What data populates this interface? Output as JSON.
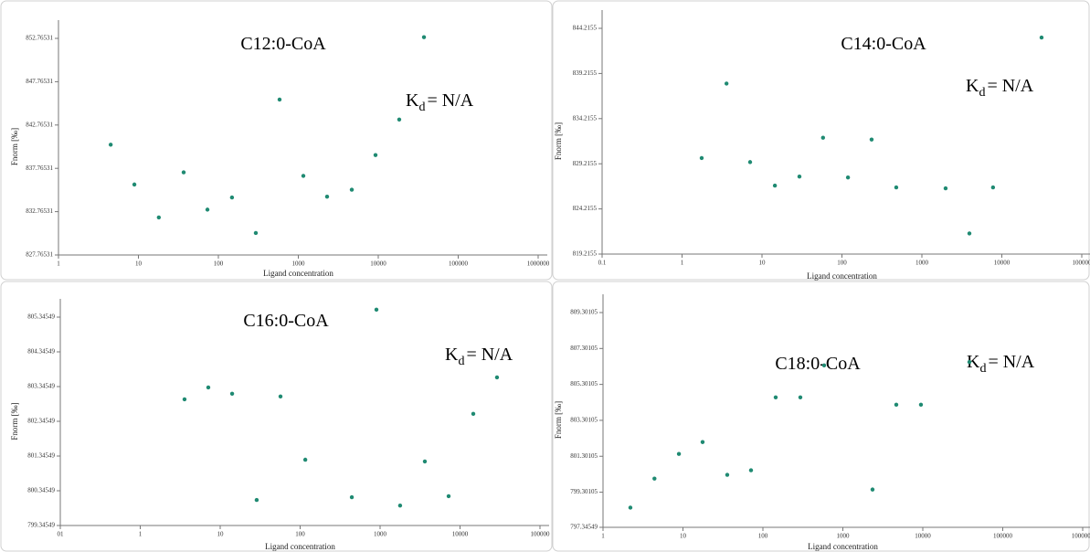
{
  "chart_data": [
    {
      "type": "scatter",
      "title": "C12:0-CoA",
      "kd": {
        "symbol": "K",
        "subscript": "d",
        "value": "= N/A"
      },
      "x_label": "Ligand concentration",
      "y_label": "Fnorm [‰]",
      "log_x": true,
      "color": "#1f8a72",
      "x": [
        4.5,
        8.9,
        18,
        36.8,
        73,
        148,
        294,
        583,
        1156,
        2290,
        4666,
        9240,
        18300,
        37300
      ],
      "values": [
        840.5,
        835.9,
        832.1,
        837.3,
        833.0,
        834.4,
        830.3,
        845.7,
        836.9,
        834.5,
        835.3,
        839.3,
        843.4,
        852.9
      ],
      "xlim": [
        1,
        1000000
      ],
      "xticks": [
        1,
        10,
        100,
        1000,
        10000,
        100000,
        1000000
      ],
      "ylim": [
        827.76531,
        852.76531
      ],
      "yticks": [
        827.76531,
        832.76531,
        837.76531,
        842.76531,
        847.76531,
        852.76531
      ]
    },
    {
      "type": "scatter",
      "title": "C14:0-CoA",
      "kd": {
        "symbol": "K",
        "subscript": "d",
        "value": "= N/A"
      },
      "x_label": "Ligand concentration",
      "y_label": "Fnorm [‰]",
      "log_x": true,
      "color": "#1f8a72",
      "x": [
        1.76,
        3.6,
        7.1,
        14.5,
        29.4,
        58,
        119,
        235,
        478,
        1980,
        3930,
        7760,
        31400
      ],
      "values": [
        829.85,
        838.1,
        829.4,
        826.8,
        827.8,
        832.1,
        827.7,
        831.9,
        826.6,
        826.5,
        821.5,
        826.6,
        843.2
      ],
      "xlim": [
        0.1,
        100000
      ],
      "xticks": [
        0.1,
        1,
        10,
        100,
        1000,
        10000,
        100000
      ],
      "ylim": [
        819.2155,
        844.2155
      ],
      "yticks": [
        819.2155,
        824.2155,
        829.2155,
        834.2155,
        839.2155,
        844.2155
      ]
    },
    {
      "type": "scatter",
      "title": "C16:0-CoA",
      "kd": {
        "symbol": "K",
        "subscript": "d",
        "value": "= N/A"
      },
      "x_label": "Ligand concentration",
      "y_label": "Fnorm [‰]",
      "log_x": true,
      "color": "#1f8a72",
      "x": [
        3.58,
        7.1,
        14.1,
        28.6,
        56.8,
        116,
        443,
        900,
        1780,
        3630,
        7200,
        14650,
        29000
      ],
      "values": [
        802.98,
        803.32,
        803.14,
        800.08,
        803.06,
        801.24,
        800.16,
        805.56,
        799.92,
        801.19,
        800.19,
        802.56,
        803.61
      ],
      "xlim": [
        0.1,
        100000
      ],
      "xticks": [
        {
          "value": 0.1,
          "label": "01"
        },
        1,
        10,
        100,
        1000,
        10000,
        100000
      ],
      "ylim": [
        799.34549,
        805.34549
      ],
      "yticks": [
        799.34549,
        800.34549,
        801.34549,
        802.34549,
        803.34549,
        804.34549,
        805.34549
      ]
    },
    {
      "type": "scatter",
      "title": "C18:0-CoA",
      "kd": {
        "symbol": "K",
        "subscript": "d",
        "value": "= N/A"
      },
      "x_label": "Ligand concentration",
      "y_label": "Fnorm [‰]",
      "log_x": true,
      "color": "#1f8a72",
      "x": [
        2.2,
        4.4,
        8.9,
        17.6,
        35.8,
        71,
        144.5,
        294,
        583,
        2350,
        4660,
        9480,
        38300
      ],
      "values": [
        798.44,
        800.06,
        801.43,
        802.09,
        800.27,
        800.52,
        804.58,
        804.58,
        806.36,
        799.45,
        804.17,
        804.17,
        806.55
      ],
      "xlim": [
        1,
        1000000
      ],
      "xticks": [
        1,
        10,
        100,
        1000,
        10000,
        100000,
        1000000
      ],
      "ylim": [
        797.34549,
        809.30105
      ],
      "yticks": [
        797.34549,
        799.30105,
        801.30105,
        803.30105,
        805.30105,
        807.30105,
        809.30105
      ]
    }
  ]
}
